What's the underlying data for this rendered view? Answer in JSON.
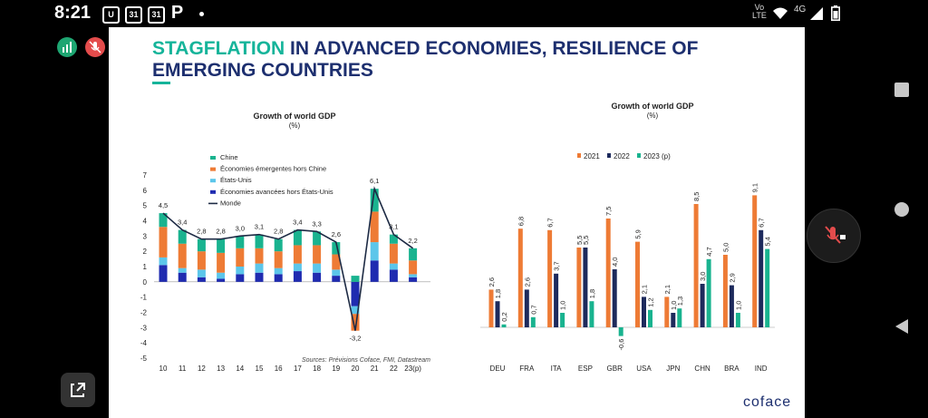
{
  "status": {
    "time": "8:21",
    "icons": [
      "U",
      "31",
      "31",
      "P"
    ],
    "net_top": "Vo",
    "net_bottom": "LTE",
    "gen": "4G"
  },
  "slide": {
    "title_accent": "STAGFLATION",
    "title_rest": " IN ADVANCED ECONOMIES, RESILIENCE OF EMERGING COUNTRIES",
    "brand": "coface"
  },
  "chart_data": [
    {
      "type": "bar",
      "title": "Growth of world GDP",
      "subtitle": "(%)",
      "stacked": true,
      "categories": [
        "10",
        "11",
        "12",
        "13",
        "14",
        "15",
        "16",
        "17",
        "18",
        "19",
        "20",
        "21",
        "22",
        "23(p)"
      ],
      "series": [
        {
          "name": "Économies avancées hors États-Unis",
          "color": "#1f2bb0",
          "values": [
            1.1,
            0.6,
            0.3,
            0.2,
            0.5,
            0.6,
            0.5,
            0.7,
            0.6,
            0.4,
            -1.6,
            1.4,
            0.8,
            0.3
          ]
        },
        {
          "name": "États-Unis",
          "color": "#5cc6ea",
          "values": [
            0.5,
            0.3,
            0.5,
            0.4,
            0.5,
            0.6,
            0.4,
            0.5,
            0.6,
            0.4,
            -0.5,
            1.2,
            0.4,
            0.2
          ]
        },
        {
          "name": "Économies émergentes hors Chine",
          "color": "#ee7b35",
          "values": [
            2.0,
            1.6,
            1.2,
            1.3,
            1.2,
            1.0,
            1.1,
            1.2,
            1.2,
            1.0,
            -1.1,
            2.0,
            1.3,
            0.9
          ]
        },
        {
          "name": "Chine",
          "color": "#19b38f",
          "values": [
            0.9,
            0.9,
            0.8,
            0.9,
            0.8,
            0.9,
            0.8,
            1.0,
            0.9,
            0.8,
            0.4,
            1.5,
            0.6,
            0.8
          ]
        }
      ],
      "line": {
        "name": "Monde",
        "color": "#1d2a44",
        "values": [
          4.5,
          3.4,
          2.8,
          2.8,
          3.0,
          3.1,
          2.8,
          3.4,
          3.3,
          2.6,
          -3.2,
          6.1,
          3.1,
          2.2
        ]
      },
      "line_labels": [
        "4,5",
        "3,4",
        "2,8",
        "2,8",
        "3,0",
        "3,1",
        "2,8",
        "3,4",
        "3,3",
        "2,6",
        "-3,2",
        "6,1",
        "3,1",
        "2,2"
      ],
      "ylim": [
        -5,
        7
      ],
      "yticks": [
        "7",
        "6",
        "5",
        "4",
        "3",
        "2",
        "1",
        "0",
        "-1",
        "-2",
        "-3",
        "-4",
        "-5"
      ],
      "legend": "top-left",
      "legend_order": [
        "Chine",
        "Économies émergentes hors Chine",
        "États-Unis",
        "Économies avancées hors États-Unis",
        "Monde"
      ],
      "source": "Sources: Prévisions Coface, FMI, Datastream"
    },
    {
      "type": "bar",
      "title": "Growth of world GDP",
      "subtitle": "(%)",
      "categories": [
        "DEU",
        "FRA",
        "ITA",
        "ESP",
        "GBR",
        "USA",
        "JPN",
        "CHN",
        "BRA",
        "IND"
      ],
      "series": [
        {
          "name": "2021",
          "color": "#ee7b35",
          "values": [
            2.6,
            6.8,
            6.7,
            5.5,
            7.5,
            5.9,
            2.1,
            8.5,
            5.0,
            9.1
          ],
          "labels": [
            "2,6",
            "6,8",
            "6,7",
            "5,5",
            "7,5",
            "5,9",
            "2,1",
            "8,5",
            "5,0",
            "9,1"
          ]
        },
        {
          "name": "2022",
          "color": "#1d2a5c",
          "values": [
            1.8,
            2.6,
            3.7,
            5.5,
            4.0,
            2.1,
            1.0,
            3.0,
            2.9,
            6.7
          ],
          "labels": [
            "1,8",
            "2,6",
            "3,7",
            "5,5",
            "4,0",
            "2,1",
            "1,0",
            "3,0",
            "2,9",
            "6,7"
          ]
        },
        {
          "name": "2023 (p)",
          "color": "#19b38f",
          "values": [
            0.2,
            0.7,
            1.0,
            1.8,
            -0.6,
            1.2,
            1.3,
            4.7,
            1.0,
            5.4
          ],
          "labels": [
            "0,2",
            "0,7",
            "1,0",
            "1,8",
            "-0,6",
            "1,2",
            "1,3",
            "4,7",
            "1,0",
            "5,4"
          ]
        }
      ],
      "legend": "top"
    }
  ]
}
